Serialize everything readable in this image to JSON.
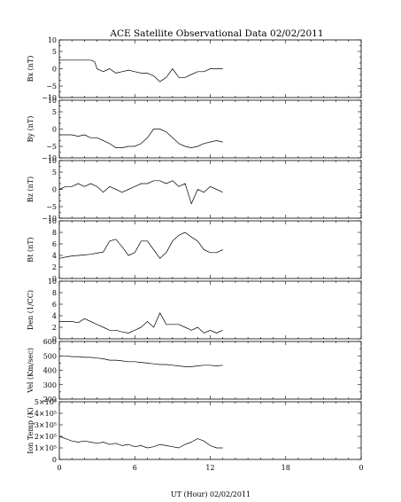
{
  "page_title": "ACE Satellite Observational Data   02/02/2011",
  "x_axis": {
    "label": "UT (Hour)   02/02/2011",
    "tick_labels": [
      "0",
      "6",
      "12",
      "18",
      "0"
    ],
    "range_hours": [
      0,
      24
    ]
  },
  "chart_data": [
    {
      "type": "line",
      "ylabel": "Bx (nT)",
      "ylim": [
        -10,
        10
      ],
      "yticks": [
        -10,
        -8,
        -6,
        -4,
        -2,
        0,
        2,
        4,
        6,
        8,
        10
      ],
      "ytick_labels": [
        "−10",
        "",
        "−5",
        "",
        "",
        "0",
        "",
        "",
        "5",
        "",
        "10"
      ],
      "series": [
        {
          "x": [
            0,
            0.5,
            1,
            1.5,
            2,
            2.5,
            2.8,
            3,
            3.5,
            4,
            4.5,
            5,
            5.5,
            6,
            6.5,
            7,
            7.5,
            8,
            8.5,
            9,
            9.5,
            10,
            10.5,
            11,
            11.5,
            12,
            12.5,
            13
          ],
          "y": [
            3,
            3,
            3,
            3,
            3,
            3,
            2.5,
            0,
            -1,
            0,
            -1.5,
            -1,
            -0.5,
            -1,
            -1.5,
            -1.5,
            -2.5,
            -4.5,
            -3,
            0,
            -3,
            -3,
            -2,
            -1,
            -1,
            0,
            0,
            0
          ]
        }
      ]
    },
    {
      "type": "line",
      "ylabel": "By (nT)",
      "ylim": [
        -10,
        10
      ],
      "yticks": [
        -10,
        -8,
        -6,
        -4,
        -2,
        0,
        2,
        4,
        6,
        8,
        10
      ],
      "ytick_labels": [
        "−10",
        "",
        "−5",
        "",
        "",
        "0",
        "",
        "",
        "5",
        "",
        "10"
      ],
      "series": [
        {
          "x": [
            0,
            0.5,
            1,
            1.5,
            2,
            2.5,
            3,
            3.5,
            4,
            4.5,
            5,
            5.5,
            6,
            6.5,
            7,
            7.5,
            8,
            8.5,
            9,
            9.5,
            10,
            10.5,
            11,
            11.5,
            12,
            12.5,
            13
          ],
          "y": [
            -2,
            -2,
            -2,
            -2.5,
            -2,
            -3,
            -3,
            -4,
            -5,
            -6.5,
            -6.5,
            -6,
            -6,
            -5,
            -3,
            0,
            0,
            -1,
            -3,
            -5,
            -6,
            -6.5,
            -6,
            -5,
            -4.5,
            -4,
            -4.5
          ]
        }
      ]
    },
    {
      "type": "line",
      "ylabel": "Bz (nT)",
      "ylim": [
        -10,
        10
      ],
      "yticks": [
        -10,
        -8,
        -6,
        -4,
        -2,
        0,
        2,
        4,
        6,
        8,
        10
      ],
      "ytick_labels": [
        "−10",
        "",
        "−5",
        "",
        "",
        "0",
        "",
        "",
        "5",
        "",
        "10"
      ],
      "series": [
        {
          "x": [
            0,
            0.5,
            1,
            1.5,
            2,
            2.5,
            3,
            3.5,
            4,
            4.5,
            5,
            5.5,
            6,
            6.5,
            7,
            7.5,
            8,
            8.5,
            9,
            9.5,
            10,
            10.5,
            11,
            11.5,
            12,
            12.5,
            13
          ],
          "y": [
            0,
            1,
            1,
            2,
            1,
            2,
            1,
            -1,
            1,
            0,
            -1,
            0,
            1,
            2,
            2,
            3,
            3,
            2,
            3,
            1,
            2,
            -5,
            0,
            -1,
            1,
            0,
            -1
          ]
        }
      ]
    },
    {
      "type": "line",
      "ylabel": "Bt (nT)",
      "ylim": [
        0,
        10
      ],
      "yticks": [
        0,
        2,
        4,
        6,
        8,
        10
      ],
      "ytick_labels": [
        "0",
        "2",
        "4",
        "6",
        "8",
        "10"
      ],
      "series": [
        {
          "x": [
            0,
            0.5,
            1,
            1.5,
            2,
            2.5,
            3,
            3.5,
            4,
            4.5,
            5,
            5.5,
            6,
            6.5,
            7,
            7.5,
            8,
            8.5,
            9,
            9.5,
            10,
            10.5,
            11,
            11.5,
            12,
            12.5,
            13
          ],
          "y": [
            3.5,
            3.7,
            3.9,
            4,
            4.1,
            4.2,
            4.4,
            4.6,
            6.5,
            6.8,
            5.5,
            4,
            4.5,
            6.5,
            6.5,
            5,
            3.5,
            4.5,
            6.5,
            7.5,
            8,
            7.2,
            6.5,
            5,
            4.5,
            4.5,
            5
          ]
        }
      ]
    },
    {
      "type": "line",
      "ylabel": "Den (1/CC)",
      "ylim": [
        0,
        10
      ],
      "yticks": [
        0,
        2,
        4,
        6,
        8,
        10
      ],
      "ytick_labels": [
        "0",
        "2",
        "4",
        "6",
        "8",
        "10"
      ],
      "series": [
        {
          "x": [
            0,
            0.5,
            1,
            1.5,
            2,
            2.5,
            3,
            3.5,
            4,
            4.5,
            5,
            5.5,
            6,
            6.5,
            7,
            7.5,
            8,
            8.5,
            9,
            9.5,
            10,
            10.5,
            11,
            11.5,
            12,
            12.5,
            13
          ],
          "y": [
            3,
            3,
            3,
            2.8,
            3.5,
            3,
            2.5,
            2,
            1.5,
            1.5,
            1.2,
            1,
            1.5,
            2,
            3,
            2,
            4.5,
            2.5,
            2.5,
            2.5,
            2,
            1.5,
            2,
            1,
            1.5,
            1,
            1.5
          ]
        }
      ]
    },
    {
      "type": "line",
      "ylabel": "Vel (Km/sec)",
      "ylim": [
        200,
        600
      ],
      "yticks": [
        200,
        250,
        300,
        350,
        400,
        450,
        500,
        550,
        600
      ],
      "ytick_labels": [
        "200",
        "",
        "300",
        "",
        "400",
        "",
        "500",
        "",
        "600"
      ],
      "series": [
        {
          "x": [
            0,
            0.5,
            1,
            1.5,
            2,
            2.5,
            3,
            3.5,
            4,
            4.5,
            5,
            5.5,
            6,
            6.5,
            7,
            7.5,
            8,
            8.5,
            9,
            9.5,
            10,
            10.5,
            11,
            11.5,
            12,
            12.5,
            13
          ],
          "y": [
            500,
            500,
            495,
            495,
            490,
            490,
            485,
            480,
            470,
            470,
            465,
            460,
            460,
            455,
            450,
            445,
            440,
            440,
            435,
            430,
            425,
            425,
            430,
            435,
            435,
            430,
            435
          ]
        }
      ]
    },
    {
      "type": "line",
      "ylabel": "Ion Temp (K)",
      "ylim": [
        0,
        500000
      ],
      "yticks": [
        0,
        100000,
        200000,
        300000,
        400000,
        500000
      ],
      "ytick_labels": [
        "0",
        "1×10⁵",
        "2×10⁵",
        "3×10⁵",
        "4×10⁵",
        "5×10⁵"
      ],
      "series": [
        {
          "x": [
            0,
            0.5,
            1,
            1.5,
            2,
            2.5,
            3,
            3.5,
            4,
            4.5,
            5,
            5.5,
            6,
            6.5,
            7,
            7.5,
            8,
            8.5,
            9,
            9.5,
            10,
            10.5,
            11,
            11.5,
            12,
            12.5,
            13
          ],
          "y": [
            200000,
            180000,
            160000,
            150000,
            160000,
            150000,
            140000,
            150000,
            130000,
            140000,
            120000,
            130000,
            110000,
            120000,
            100000,
            110000,
            130000,
            120000,
            110000,
            100000,
            130000,
            150000,
            180000,
            160000,
            120000,
            100000,
            100000
          ]
        }
      ]
    }
  ]
}
